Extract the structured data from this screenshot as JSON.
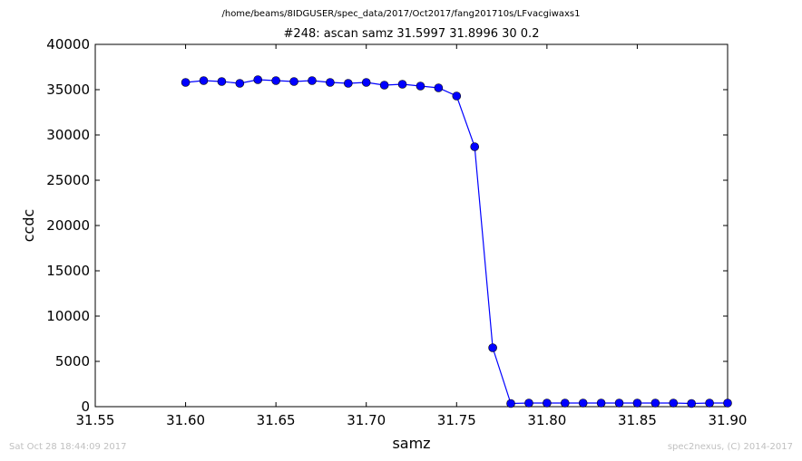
{
  "suptitle": "/home/beams/8IDGUSER/spec_data/2017/Oct2017/fang201710s/LFvacgiwaxs1",
  "footer": {
    "left": "Sat Oct 28 18:44:09 2017",
    "right": "spec2nexus, (C) 2014-2017"
  },
  "chart_data": {
    "type": "line",
    "title": "#248: ascan  samz 31.5997 31.8996  30 0.2",
    "xlabel": "samz",
    "ylabel": "ccdc",
    "xlim": [
      31.55,
      31.9
    ],
    "ylim": [
      0,
      40000
    ],
    "xticks": [
      "31.55",
      "31.60",
      "31.65",
      "31.70",
      "31.75",
      "31.80",
      "31.85",
      "31.90"
    ],
    "yticks": [
      "0",
      "5000",
      "10000",
      "15000",
      "20000",
      "25000",
      "30000",
      "35000",
      "40000"
    ],
    "grid": false,
    "series": [
      {
        "color": "#0000ff",
        "marker": "circle",
        "x": [
          31.6,
          31.61,
          31.62,
          31.63,
          31.64,
          31.65,
          31.66,
          31.67,
          31.68,
          31.69,
          31.7,
          31.71,
          31.72,
          31.73,
          31.74,
          31.75,
          31.76,
          31.77,
          31.78,
          31.79,
          31.8,
          31.81,
          31.82,
          31.83,
          31.84,
          31.85,
          31.86,
          31.87,
          31.88,
          31.89,
          31.9
        ],
        "y": [
          35800,
          36000,
          35900,
          35700,
          36100,
          36000,
          35900,
          36000,
          35800,
          35700,
          35800,
          35500,
          35600,
          35400,
          35200,
          34300,
          28700,
          6500,
          350,
          400,
          400,
          400,
          400,
          400,
          400,
          400,
          400,
          400,
          350,
          400,
          400
        ]
      }
    ]
  }
}
